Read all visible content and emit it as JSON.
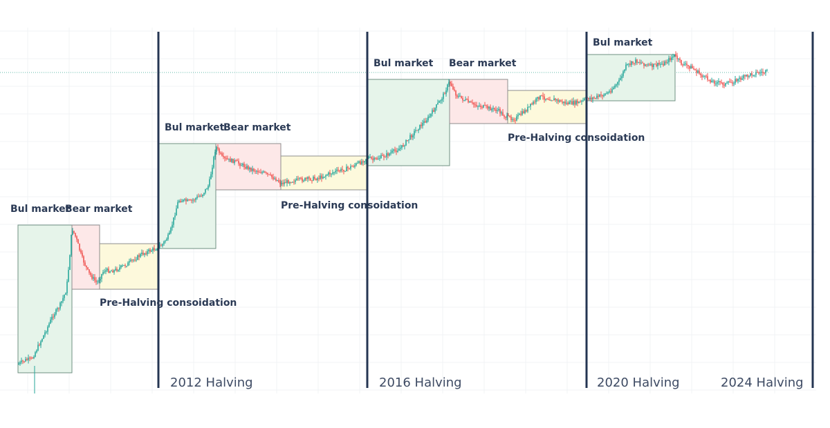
{
  "colors": {
    "halving_line": "#243552",
    "bull_fill": "#e6f4ea",
    "bull_stroke": "#6f8f82",
    "bear_fill": "#fde8e8",
    "bear_stroke": "#8d8d8d",
    "consolidation_fill": "#fdf9dc",
    "consolidation_stroke": "#8d8d8d",
    "candle_up": "#26a69a",
    "candle_down": "#ef5350",
    "label_text": "#2b3a55",
    "grid": "#f1f3f6",
    "price_line": "#5fb8a8"
  },
  "chart_data": {
    "type": "candlestick",
    "title": "",
    "xlabel": "",
    "ylabel": "",
    "grid": true,
    "halvings": [
      {
        "label": "2012 Halving"
      },
      {
        "label": "2016 Halving"
      },
      {
        "label": "2020 Halving"
      },
      {
        "label": "2024 Halving"
      }
    ],
    "phases": [
      {
        "label": "Bul market",
        "kind": "bull",
        "cycle": 1
      },
      {
        "label": "Bear market",
        "kind": "bear",
        "cycle": 1
      },
      {
        "label": "Pre-Halving consoidation",
        "kind": "consolidation",
        "cycle": 1
      },
      {
        "label": "Bul market",
        "kind": "bull",
        "cycle": 2
      },
      {
        "label": "Bear market",
        "kind": "bear",
        "cycle": 2
      },
      {
        "label": "Pre-Halving consoidation",
        "kind": "consolidation",
        "cycle": 2
      },
      {
        "label": "Bul market",
        "kind": "bull",
        "cycle": 3
      },
      {
        "label": "Bear market",
        "kind": "bear",
        "cycle": 3
      },
      {
        "label": "Pre-Halving consoidation",
        "kind": "consolidation",
        "cycle": 3
      },
      {
        "label": "Bul market",
        "kind": "bull",
        "cycle": 4
      }
    ]
  }
}
